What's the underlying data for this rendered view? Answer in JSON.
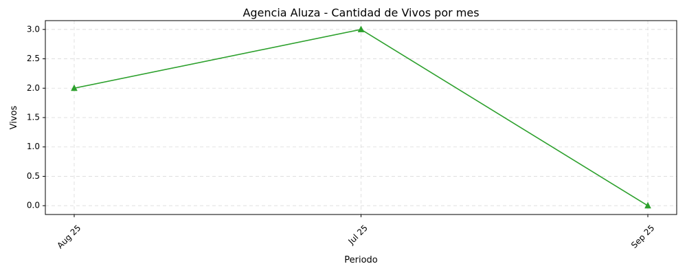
{
  "chart_data": {
    "type": "line",
    "title": "Agencia Aluza - Cantidad de Vivos por mes",
    "xlabel": "Periodo",
    "ylabel": "Vivos",
    "categories": [
      "Aug 25",
      "Jul 25",
      "Sep 25"
    ],
    "series": [
      {
        "values": [
          2,
          3,
          0
        ],
        "color": "#2ca02c",
        "marker": "triangle"
      }
    ],
    "ylim": [
      -0.15,
      3.15
    ],
    "yticks": [
      "0.0",
      "0.5",
      "1.0",
      "1.5",
      "2.0",
      "2.5",
      "3.0"
    ],
    "grid": true,
    "legend": "none"
  }
}
